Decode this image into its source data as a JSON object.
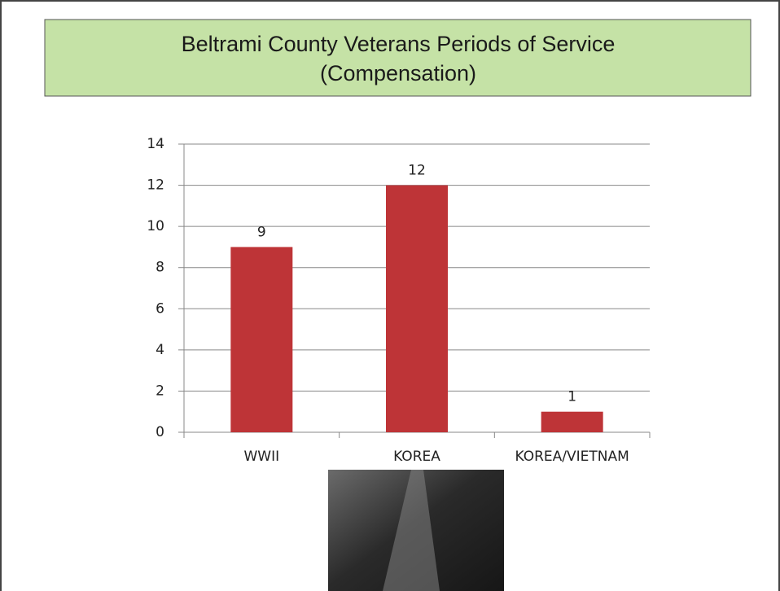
{
  "chart_data": {
    "type": "bar",
    "title": [
      "Beltrami County Veterans Periods of Service",
      "(Compensation)"
    ],
    "categories": [
      "WWII",
      "KOREA",
      "KOREA/VIETNAM"
    ],
    "values": [
      9,
      12,
      1
    ],
    "color": "#be3437",
    "ylim": [
      0,
      14
    ],
    "yticks": [
      0,
      2,
      4,
      6,
      8,
      10,
      12,
      14
    ],
    "grid": true
  }
}
